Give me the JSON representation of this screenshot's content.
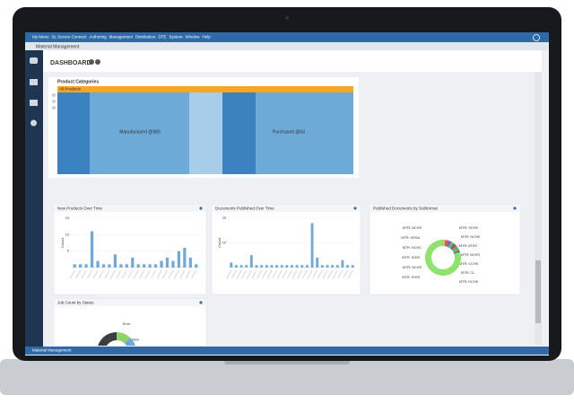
{
  "menu": [
    "My Menu",
    "SL Secure Connect",
    "Authoring",
    "Management",
    "Distribution",
    "DTE",
    "System",
    "Window",
    "Help"
  ],
  "window_tab": "Material Management",
  "header": {
    "title": "DASHBOARD"
  },
  "product_categories": {
    "title": "Product Categories",
    "filter": "All Products",
    "blocks": [
      "Manufactured @980",
      "Purchased @63"
    ]
  },
  "panels": [
    {
      "title": "New Products Over Time",
      "y_label": "Count",
      "ylim": [
        0,
        15
      ],
      "yticks": [
        5,
        10,
        15
      ],
      "values": [
        1,
        1,
        1,
        11,
        2,
        1,
        1,
        4,
        1,
        1,
        3,
        1,
        1,
        1,
        1,
        2,
        3,
        2,
        5,
        6,
        3,
        1
      ]
    },
    {
      "title": "Documents Published Over Time",
      "y_label": "Count",
      "ylim": [
        0,
        20
      ],
      "yticks": [
        10,
        20
      ],
      "values": [
        2,
        1,
        1,
        1,
        5,
        1,
        1,
        1,
        1,
        1,
        1,
        1,
        1,
        1,
        1,
        1,
        18,
        4,
        1,
        1,
        1,
        1,
        3,
        1,
        1
      ]
    },
    {
      "title": "Published Documents by Subformat",
      "categories": [
        "MTR: NCHS",
        "MTR: KRSA",
        "MTR: NCHC",
        "MTR: IGHS",
        "MTR: NCHS",
        "MTR: IGHS",
        "MTR: SCHS",
        "MTR: NCHS",
        "MTR: ATDS",
        "MTR: BCHS",
        "MTR: CCHS",
        "MTR: CL",
        "MTR: DCHS"
      ],
      "values": [
        2,
        2,
        2,
        2,
        1,
        2,
        2,
        2,
        2,
        1,
        1,
        1,
        80
      ],
      "colors": [
        "#e8b83a",
        "#d9534f",
        "#9b59b6",
        "#3a7dc1",
        "#f39c12",
        "#1abc9c",
        "#c0392b",
        "#7f8c8d",
        "#2ecc71",
        "#e67e22",
        "#8e44ad",
        "#16a085",
        "#8de36b"
      ]
    },
    {
      "title": "Job Count by Status",
      "categories": [
        "Error",
        "New",
        null
      ],
      "values": [
        12,
        10,
        78
      ],
      "colors": [
        "#8fd36a",
        "#6fa8dc",
        "#3b3f45"
      ]
    }
  ],
  "status_bar": "Material Management"
}
